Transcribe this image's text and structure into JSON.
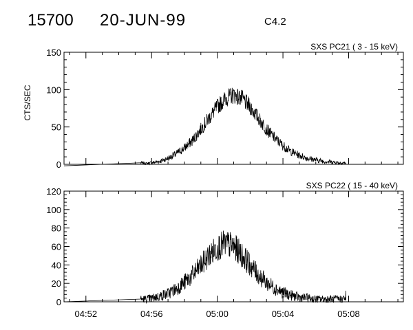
{
  "header": {
    "event_id": "15700",
    "date": "20-JUN-99",
    "flare_class": "C4.2"
  },
  "chart_data": [
    {
      "type": "line",
      "title": "SXS PC21  (  3 - 15 keV)",
      "ylabel": "CTS/SEC",
      "xlabel": "",
      "xlim": [
        "04:50:40",
        "05:11:20"
      ],
      "ylim": [
        0,
        150
      ],
      "yticks": [
        0,
        50,
        100,
        150
      ],
      "ytick_labels": [
        "0",
        "50",
        "100",
        "150"
      ],
      "xticks": [
        "04:52",
        "04:56",
        "05:00",
        "05:04",
        "05:08"
      ],
      "xtick_labels": [],
      "grid": false,
      "series": [
        {
          "x": [
            "04:50:40",
            "04:55:20",
            "04:55:40",
            "04:56:00",
            "04:56:30",
            "04:57:00",
            "04:57:30",
            "04:58:00",
            "04:58:30",
            "04:59:00",
            "04:59:30",
            "05:00:00",
            "05:00:30",
            "05:01:00",
            "05:01:30",
            "05:02:00",
            "05:02:30",
            "05:03:00",
            "05:03:30",
            "05:04:00",
            "05:04:30",
            "05:05:00",
            "05:05:30",
            "05:06:00",
            "05:06:30",
            "05:07:00",
            "05:07:30",
            "05:07:50"
          ],
          "y": [
            -2,
            2,
            1,
            2,
            4,
            8,
            14,
            22,
            32,
            47,
            62,
            77,
            88,
            93,
            88,
            77,
            62,
            47,
            35,
            25,
            17,
            12,
            8,
            6,
            4,
            3,
            2,
            2
          ]
        }
      ]
    },
    {
      "type": "line",
      "title": "SXS PC22  ( 15 - 40 keV)",
      "ylabel": "",
      "xlabel": "",
      "xlim": [
        "04:50:40",
        "05:11:20"
      ],
      "ylim": [
        0,
        120
      ],
      "yticks": [
        0,
        20,
        40,
        60,
        80,
        100,
        120
      ],
      "ytick_labels": [
        "0",
        "20",
        "40",
        "60",
        "80",
        "100",
        "120"
      ],
      "xticks": [
        "04:52",
        "04:56",
        "05:00",
        "05:04",
        "05:08"
      ],
      "xtick_labels": [
        "04:52",
        "04:56",
        "05:00",
        "05:04",
        "05:08"
      ],
      "grid": false,
      "series": [
        {
          "x": [
            "04:50:40",
            "04:55:20",
            "04:55:40",
            "04:56:00",
            "04:56:30",
            "04:57:00",
            "04:57:30",
            "04:58:00",
            "04:58:30",
            "04:59:00",
            "04:59:30",
            "05:00:00",
            "05:00:30",
            "05:01:00",
            "05:01:30",
            "05:02:00",
            "05:02:30",
            "05:03:00",
            "05:03:30",
            "05:04:00",
            "05:04:30",
            "05:05:00",
            "05:05:30",
            "05:06:00",
            "05:06:30",
            "05:07:00",
            "05:07:30",
            "05:07:50"
          ],
          "y": [
            0,
            3,
            3,
            4,
            6,
            9,
            14,
            21,
            29,
            39,
            50,
            59,
            63,
            60,
            51,
            40,
            29,
            21,
            15,
            10,
            7,
            5,
            4,
            3,
            3,
            3,
            3,
            4
          ]
        }
      ]
    }
  ]
}
